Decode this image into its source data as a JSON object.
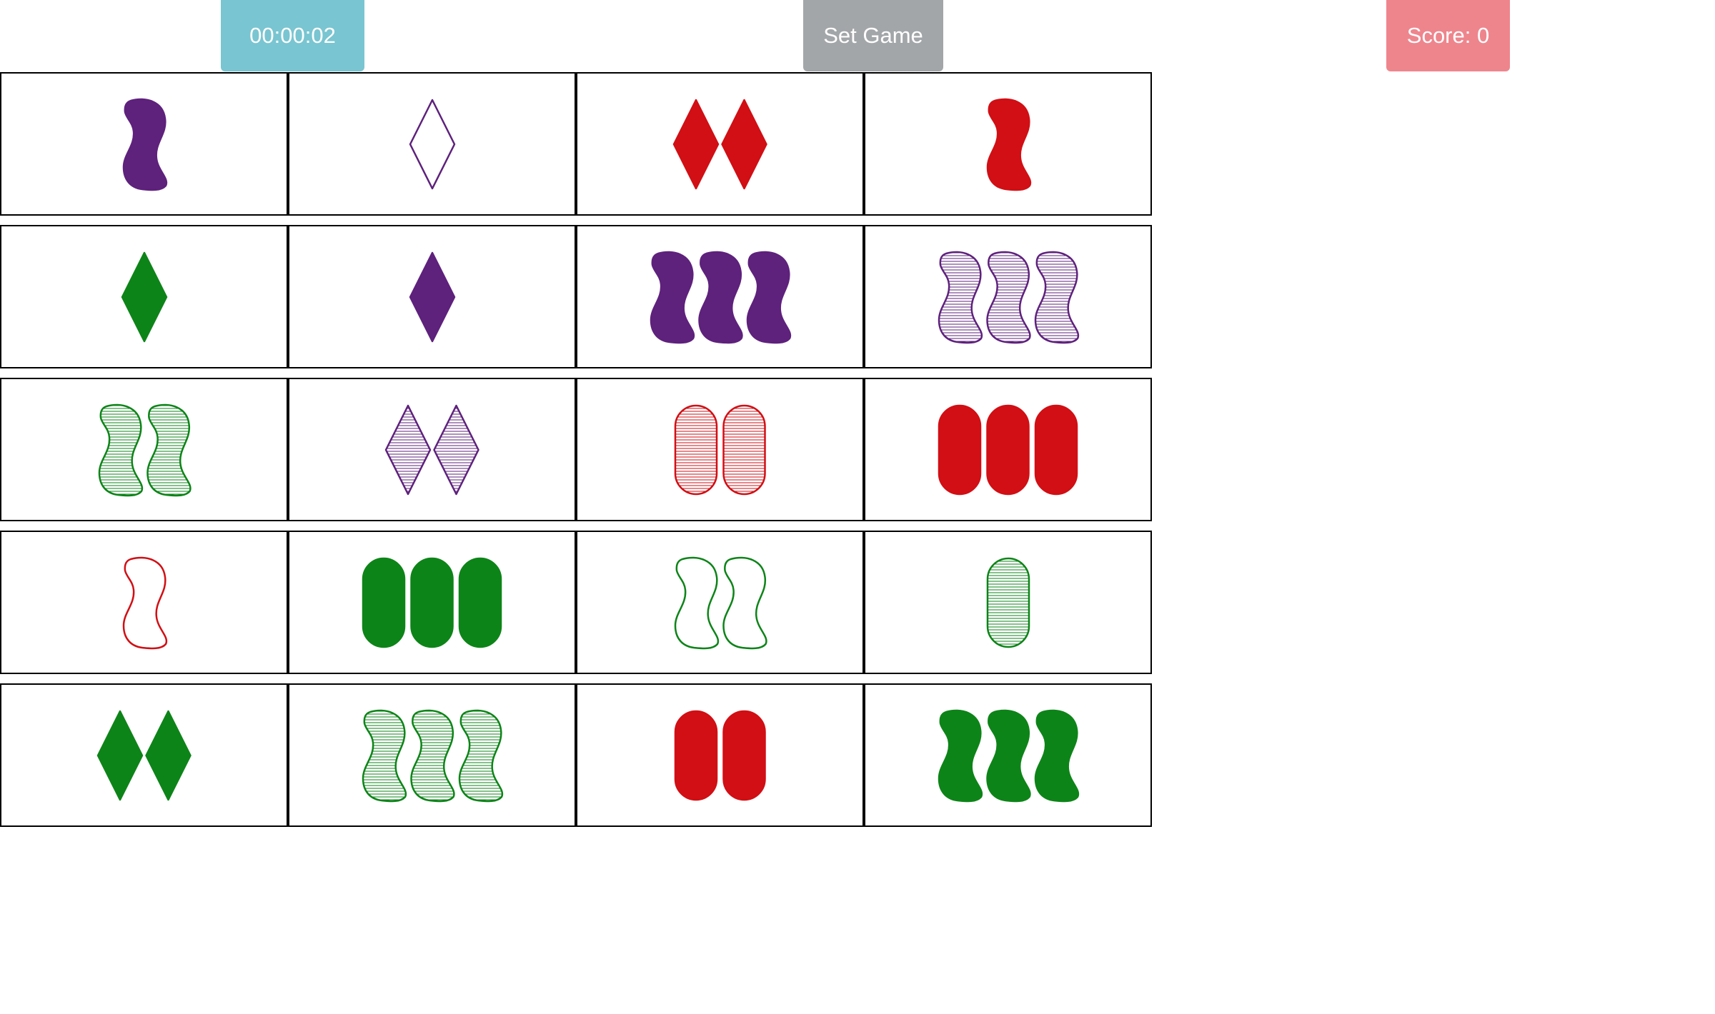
{
  "header": {
    "timer": "00:00:02",
    "set_game_label": "Set Game",
    "score_label": "Score: 0"
  },
  "colors": {
    "timer_bg": "#79c5d1",
    "set_game_bg": "#a3a6a8",
    "score_bg": "#ee858d",
    "red": "#d10f14",
    "green": "#0d8418",
    "purple": "#5e217c"
  },
  "board": {
    "rows": 5,
    "cols": 4,
    "cards": [
      {
        "count": 1,
        "shape": "squiggle",
        "color": "purple",
        "fill": "solid"
      },
      {
        "count": 1,
        "shape": "diamond",
        "color": "purple",
        "fill": "open"
      },
      {
        "count": 2,
        "shape": "diamond",
        "color": "red",
        "fill": "solid"
      },
      {
        "count": 1,
        "shape": "squiggle",
        "color": "red",
        "fill": "solid"
      },
      {
        "count": 1,
        "shape": "diamond",
        "color": "green",
        "fill": "solid"
      },
      {
        "count": 1,
        "shape": "diamond",
        "color": "purple",
        "fill": "solid"
      },
      {
        "count": 3,
        "shape": "squiggle",
        "color": "purple",
        "fill": "solid"
      },
      {
        "count": 3,
        "shape": "squiggle",
        "color": "purple",
        "fill": "striped"
      },
      {
        "count": 2,
        "shape": "squiggle",
        "color": "green",
        "fill": "striped"
      },
      {
        "count": 2,
        "shape": "diamond",
        "color": "purple",
        "fill": "striped"
      },
      {
        "count": 2,
        "shape": "oval",
        "color": "red",
        "fill": "striped"
      },
      {
        "count": 3,
        "shape": "oval",
        "color": "red",
        "fill": "solid"
      },
      {
        "count": 1,
        "shape": "squiggle",
        "color": "red",
        "fill": "open"
      },
      {
        "count": 3,
        "shape": "oval",
        "color": "green",
        "fill": "solid"
      },
      {
        "count": 2,
        "shape": "squiggle",
        "color": "green",
        "fill": "open"
      },
      {
        "count": 1,
        "shape": "oval",
        "color": "green",
        "fill": "striped"
      },
      {
        "count": 2,
        "shape": "diamond",
        "color": "green",
        "fill": "solid"
      },
      {
        "count": 3,
        "shape": "squiggle",
        "color": "green",
        "fill": "striped"
      },
      {
        "count": 2,
        "shape": "oval",
        "color": "red",
        "fill": "solid"
      },
      {
        "count": 3,
        "shape": "squiggle",
        "color": "green",
        "fill": "solid"
      }
    ]
  }
}
